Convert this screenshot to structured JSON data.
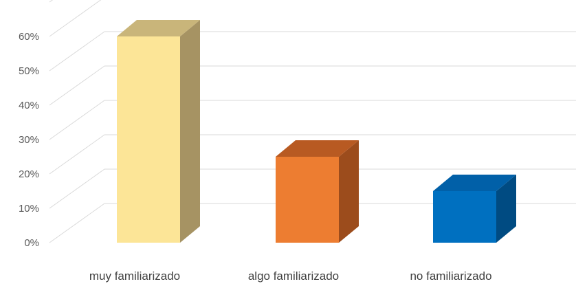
{
  "chart_data": {
    "type": "bar",
    "style": "3d-column",
    "categories": [
      "muy familiarizado",
      "algo familiarizado",
      "no familiarizado"
    ],
    "values": [
      60,
      25,
      15
    ],
    "colors": [
      {
        "front": "#fce597",
        "side": "#a69363",
        "top": "#c9b57a"
      },
      {
        "front": "#ed7d31",
        "side": "#9c4c1c",
        "top": "#b85a22"
      },
      {
        "front": "#0070c0",
        "side": "#004b82",
        "top": "#0160a8"
      }
    ],
    "yticks": [
      "0%",
      "10%",
      "20%",
      "30%",
      "40%",
      "50%",
      "60%"
    ],
    "ylim": [
      0,
      60
    ],
    "grid": true,
    "legend": "none",
    "title": "",
    "xlabel": "",
    "ylabel": ""
  }
}
